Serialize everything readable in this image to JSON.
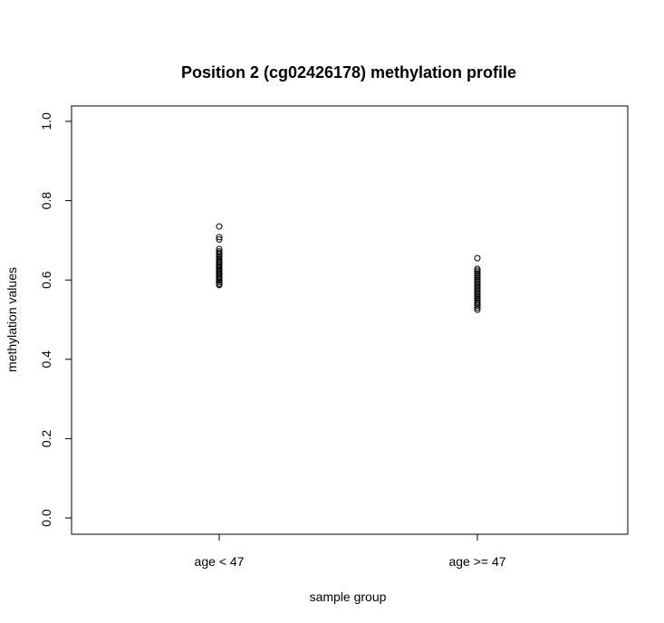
{
  "chart_data": {
    "type": "scatter",
    "title": "Position 2 (cg02426178) methylation profile",
    "xlabel": "sample group",
    "ylabel": "methylation values",
    "categories": [
      "age < 47",
      "age >= 47"
    ],
    "ylim": [
      0.0,
      1.0
    ],
    "yticks": [
      "0.0",
      "0.2",
      "0.4",
      "0.6",
      "0.8",
      "1.0"
    ],
    "grid": false,
    "legend": "none",
    "series": [
      {
        "category": "age < 47",
        "values": [
          0.735,
          0.708,
          0.702,
          0.678,
          0.672,
          0.668,
          0.664,
          0.66,
          0.656,
          0.652,
          0.648,
          0.645,
          0.642,
          0.638,
          0.635,
          0.632,
          0.628,
          0.625,
          0.622,
          0.618,
          0.615,
          0.612,
          0.608,
          0.605,
          0.602,
          0.598,
          0.594,
          0.59,
          0.587
        ]
      },
      {
        "category": "age >= 47",
        "values": [
          0.655,
          0.628,
          0.624,
          0.62,
          0.616,
          0.612,
          0.608,
          0.604,
          0.6,
          0.596,
          0.592,
          0.588,
          0.584,
          0.58,
          0.576,
          0.572,
          0.568,
          0.564,
          0.56,
          0.556,
          0.552,
          0.548,
          0.544,
          0.54,
          0.535,
          0.53,
          0.525
        ]
      }
    ],
    "marker_color": "#000000"
  }
}
